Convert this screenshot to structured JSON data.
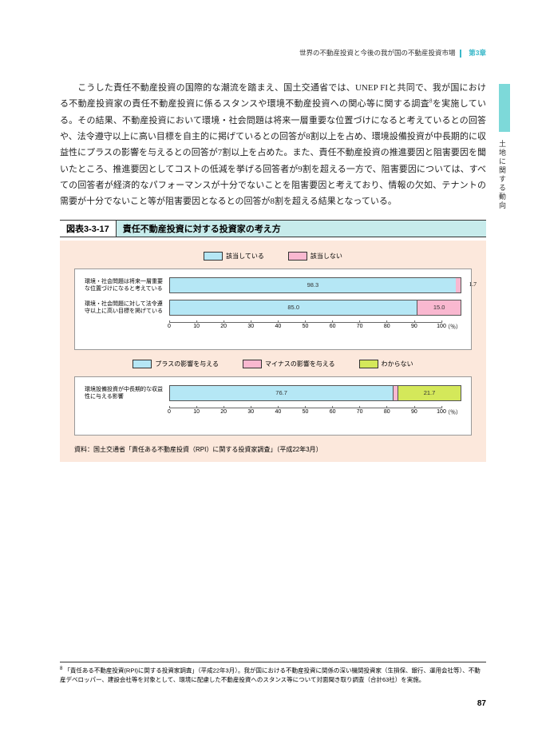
{
  "header": {
    "text": "世界の不動産投資と今後の我が国の不動産投資市場",
    "chapter": "第3章"
  },
  "sideText": "土地に関する動向",
  "bodyText": "　こうした責任不動産投資の国際的な潮流を踏まえ、国土交通省では、UNEP FIと共同で、我が国における不動産投資家の責任不動産投資に係るスタンスや環境不動産投資への関心等に関する調査<span class='sup'>8</span>を実施している。その結果、不動産投資において環境・社会問題は将来一層重要な位置づけになると考えているとの回答や、法令遵守以上に高い目標を自主的に掲げているとの回答が8割以上を占め、環境設備投資が中長期的に収益性にプラスの影響を与えるとの回答が7割以上を占めた。また、責任不動産投資の推進要因と阻害要因を聞いたところ、推進要因としてコストの低減を挙げる回答者が9割を超える一方で、阻害要因については、すべての回答者が経済的なパフォーマンスが十分でないことを阻害要因と考えており、情報の欠如、テナントの需要が十分でないこと等が阻害要因となるとの回答が8割を超える結果となっている。",
  "figure": {
    "number": "図表3-3-17",
    "title": "責任不動産投資に対する投資家の考え方",
    "colors": {
      "blue": "#b5e7f5",
      "pink": "#f9b8d0",
      "green": "#d4e85a",
      "bg": "#fce8dc"
    },
    "chart1": {
      "legend": [
        {
          "label": "該当している",
          "color": "#b5e7f5"
        },
        {
          "label": "該当しない",
          "color": "#f9b8d0"
        }
      ],
      "rows": [
        {
          "label": "環境・社会問題は将来一層重要な位置づけになると考えている",
          "segments": [
            {
              "value": 98.3,
              "color": "#b5e7f5",
              "text": "98.3"
            },
            {
              "value": 1.7,
              "color": "#f9b8d0",
              "text": "1.7",
              "outside": true
            }
          ]
        },
        {
          "label": "環境・社会問題に対して法令遵守以上に高い目標を掲げている",
          "segments": [
            {
              "value": 85.0,
              "color": "#b5e7f5",
              "text": "85.0"
            },
            {
              "value": 15.0,
              "color": "#f9b8d0",
              "text": "15.0"
            }
          ]
        }
      ],
      "axis": {
        "min": 0,
        "max": 100,
        "step": 10,
        "unit": "（％）"
      }
    },
    "chart2": {
      "legend": [
        {
          "label": "プラスの影響を与える",
          "color": "#b5e7f5"
        },
        {
          "label": "マイナスの影響を与える",
          "color": "#f9b8d0"
        },
        {
          "label": "わからない",
          "color": "#d4e85a"
        }
      ],
      "rows": [
        {
          "label": "環境設備投資が中長期的な収益性に与える影響",
          "segments": [
            {
              "value": 76.7,
              "color": "#b5e7f5",
              "text": "76.7"
            },
            {
              "value": 1.6,
              "color": "#f9b8d0",
              "text": ""
            },
            {
              "value": 21.7,
              "color": "#d4e85a",
              "text": "21.7"
            }
          ]
        }
      ],
      "axis": {
        "min": 0,
        "max": 100,
        "step": 10,
        "unit": "（％）"
      }
    },
    "source": "資料：国土交通省「責任ある不動産投資（RPI）に関する投資家調査」（平成22年3月）"
  },
  "footnote": {
    "num": "8",
    "text": "「責任ある不動産投資(RPI)に関する投資家調査」（平成22年3月）。我が国における不動産投資に関係の深い機関投資家（生損保、銀行、運用会社等）、不動産デベロッパー、建設会社等を対象として、環境に配慮した不動産投資へのスタンス等について対面聞き取り調査（合計63社）を実施。"
  },
  "pageNum": "87"
}
